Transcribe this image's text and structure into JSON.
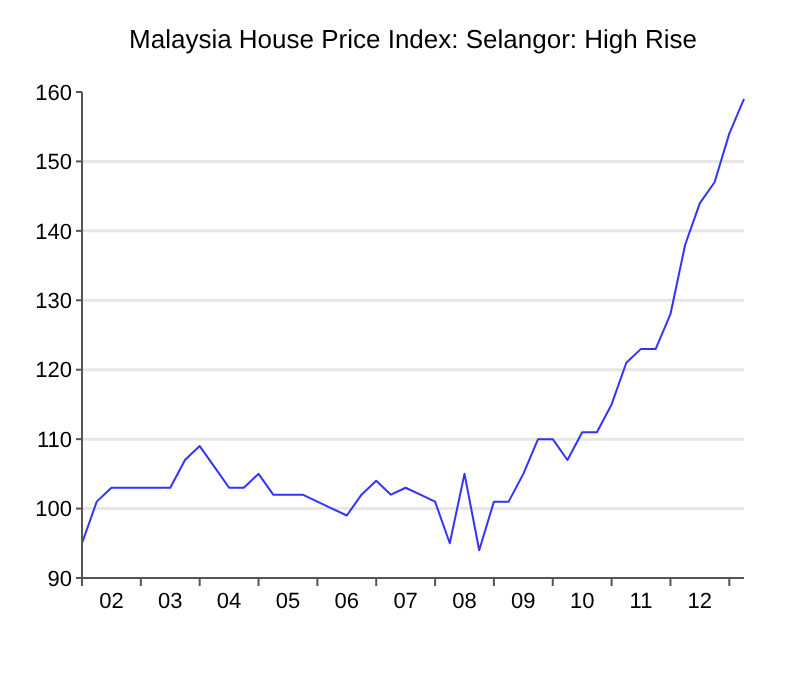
{
  "chart_data": {
    "type": "line",
    "title": "Malaysia House Price Index: Selangor: High Rise",
    "categories": [
      null,
      null,
      "02",
      null,
      null,
      null,
      "03",
      null,
      null,
      null,
      "04",
      null,
      null,
      null,
      "05",
      null,
      null,
      null,
      "06",
      null,
      null,
      null,
      "07",
      null,
      null,
      null,
      "08",
      null,
      null,
      null,
      "09",
      null,
      null,
      null,
      "10",
      null,
      null,
      null,
      "11",
      null,
      null,
      null,
      "12",
      null,
      null,
      null
    ],
    "series": [
      {
        "color": "#3333ff",
        "values": [
          95,
          101,
          103,
          103,
          103,
          103,
          103,
          107,
          109,
          106,
          103,
          103,
          105,
          102,
          102,
          102,
          101,
          100,
          99,
          102,
          104,
          102,
          103,
          102,
          101,
          95,
          105,
          94,
          101,
          101,
          105,
          110,
          110,
          107,
          111,
          111,
          115,
          121,
          123,
          123,
          128,
          138,
          144,
          147,
          154,
          159
        ]
      }
    ],
    "ylim": [
      90,
      160
    ],
    "yticks": [
      90,
      100,
      110,
      120,
      130,
      140,
      150,
      160
    ],
    "grid": "y",
    "marker": "none",
    "line_style": "solid"
  }
}
